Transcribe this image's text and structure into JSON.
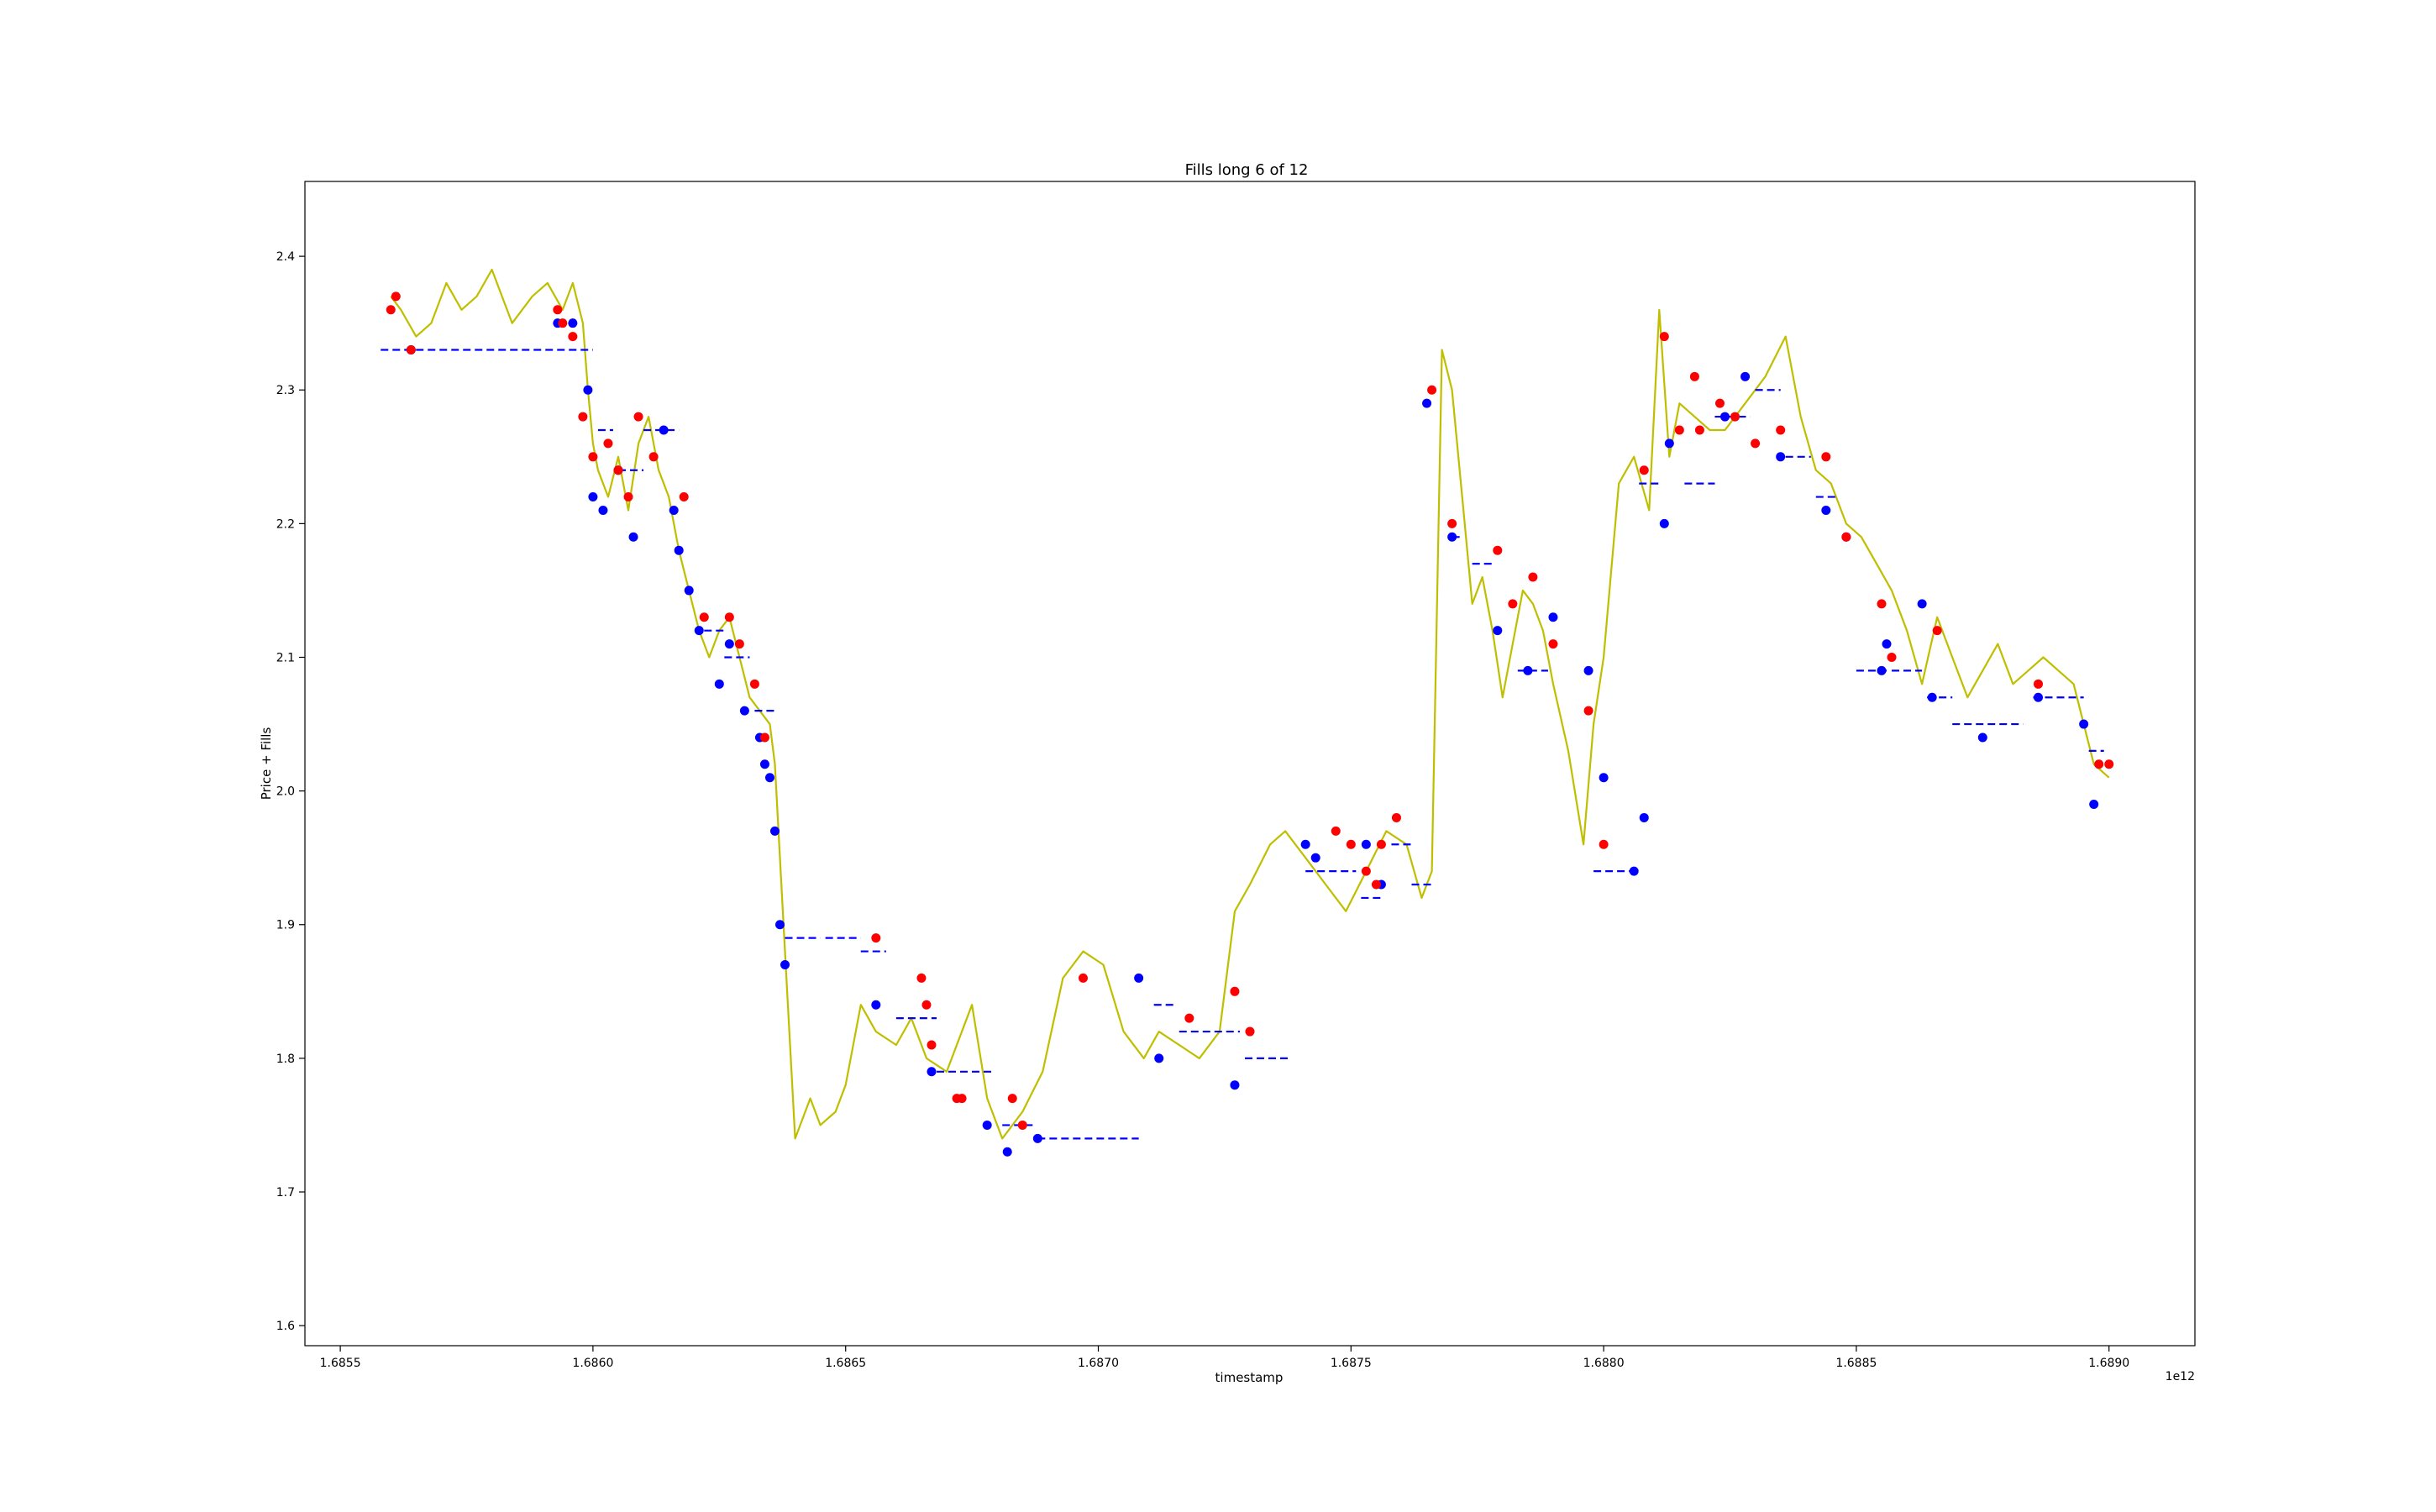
{
  "chart_data": {
    "type": "line",
    "title": "Fills long 6 of 12",
    "xlabel": "timestamp",
    "ylabel": "Price + Fills",
    "x_offset_label": "1e12",
    "xlim": [
      1.68543,
      1.68917
    ],
    "ylim": [
      1.585,
      2.456
    ],
    "xticks": [
      1.6855,
      1.686,
      1.6865,
      1.687,
      1.6875,
      1.688,
      1.6885,
      1.689
    ],
    "xtick_labels": [
      "1.6855",
      "1.6860",
      "1.6865",
      "1.6870",
      "1.6875",
      "1.6880",
      "1.6885",
      "1.6890"
    ],
    "yticks": [
      1.6,
      1.7,
      1.8,
      1.9,
      2.0,
      2.1,
      2.2,
      2.3,
      2.4
    ],
    "ytick_labels": [
      "1.6",
      "1.7",
      "1.8",
      "1.9",
      "2.0",
      "2.1",
      "2.2",
      "2.3",
      "2.4"
    ],
    "grid": false,
    "colors": {
      "price": "#bfbf00",
      "buy_fill": "#0000ff",
      "sell_fill": "#ff0000",
      "position_price": "#0000ff"
    },
    "series": [
      {
        "role": "price",
        "style": "line",
        "x": [
          1.6856,
          1.68562,
          1.68565,
          1.68568,
          1.68571,
          1.68574,
          1.68577,
          1.6858,
          1.68584,
          1.68588,
          1.68591,
          1.68594,
          1.68596,
          1.68598,
          1.68599,
          1.686,
          1.68601,
          1.68603,
          1.68605,
          1.68607,
          1.68609,
          1.68611,
          1.68613,
          1.68615,
          1.68617,
          1.68619,
          1.68621,
          1.68623,
          1.68625,
          1.68627,
          1.68629,
          1.68631,
          1.68633,
          1.68635,
          1.68636,
          1.68637,
          1.68638,
          1.6864,
          1.68643,
          1.68645,
          1.68648,
          1.6865,
          1.68653,
          1.68656,
          1.6866,
          1.68663,
          1.68666,
          1.6867,
          1.68675,
          1.68678,
          1.68681,
          1.68685,
          1.68689,
          1.68693,
          1.68697,
          1.68701,
          1.68705,
          1.68709,
          1.68712,
          1.68716,
          1.6872,
          1.68724,
          1.68727,
          1.6873,
          1.68734,
          1.68737,
          1.68741,
          1.68745,
          1.68749,
          1.68753,
          1.68757,
          1.68761,
          1.68764,
          1.68766,
          1.68768,
          1.6877,
          1.68772,
          1.68774,
          1.68776,
          1.68778,
          1.6878,
          1.68782,
          1.68784,
          1.68786,
          1.68788,
          1.6879,
          1.68793,
          1.68796,
          1.68798,
          1.688,
          1.68803,
          1.68806,
          1.68809,
          1.68811,
          1.68813,
          1.68815,
          1.68818,
          1.68821,
          1.68824,
          1.68828,
          1.68832,
          1.68836,
          1.68839,
          1.68842,
          1.68845,
          1.68848,
          1.68851,
          1.68854,
          1.68857,
          1.6886,
          1.68863,
          1.68866,
          1.68869,
          1.68872,
          1.68875,
          1.68878,
          1.68881,
          1.68884,
          1.68887,
          1.6889,
          1.68893,
          1.68897,
          1.689
        ],
        "y": [
          2.37,
          2.36,
          2.34,
          2.35,
          2.38,
          2.36,
          2.37,
          2.39,
          2.35,
          2.37,
          2.38,
          2.36,
          2.38,
          2.35,
          2.3,
          2.26,
          2.24,
          2.22,
          2.25,
          2.21,
          2.26,
          2.28,
          2.24,
          2.22,
          2.18,
          2.15,
          2.12,
          2.1,
          2.12,
          2.13,
          2.1,
          2.07,
          2.06,
          2.05,
          2.02,
          1.95,
          1.88,
          1.74,
          1.77,
          1.75,
          1.76,
          1.78,
          1.84,
          1.82,
          1.81,
          1.83,
          1.8,
          1.79,
          1.84,
          1.77,
          1.74,
          1.76,
          1.79,
          1.86,
          1.88,
          1.87,
          1.82,
          1.8,
          1.82,
          1.81,
          1.8,
          1.82,
          1.91,
          1.93,
          1.96,
          1.97,
          1.95,
          1.93,
          1.91,
          1.94,
          1.97,
          1.96,
          1.92,
          1.94,
          2.33,
          2.3,
          2.22,
          2.14,
          2.16,
          2.12,
          2.07,
          2.11,
          2.15,
          2.14,
          2.12,
          2.08,
          2.03,
          1.96,
          2.05,
          2.1,
          2.23,
          2.25,
          2.21,
          2.36,
          2.25,
          2.29,
          2.28,
          2.27,
          2.27,
          2.29,
          2.31,
          2.34,
          2.28,
          2.24,
          2.23,
          2.2,
          2.19,
          2.17,
          2.15,
          2.12,
          2.08,
          2.13,
          2.1,
          2.07,
          2.09,
          2.11,
          2.08,
          2.09,
          2.1,
          2.09,
          2.08,
          2.02,
          2.01
        ]
      },
      {
        "role": "buy_fills",
        "style": "markers",
        "x": [
          1.68564,
          1.68593,
          1.68596,
          1.68599,
          1.686,
          1.68602,
          1.68605,
          1.68608,
          1.68614,
          1.68616,
          1.68617,
          1.68619,
          1.68621,
          1.68625,
          1.68627,
          1.6863,
          1.68633,
          1.68634,
          1.68635,
          1.68636,
          1.68637,
          1.68638,
          1.68656,
          1.68667,
          1.68678,
          1.68682,
          1.68688,
          1.68708,
          1.68712,
          1.68727,
          1.68741,
          1.68743,
          1.68753,
          1.68756,
          1.68765,
          1.6877,
          1.68779,
          1.68785,
          1.6879,
          1.68797,
          1.688,
          1.68806,
          1.68808,
          1.68812,
          1.68813,
          1.68824,
          1.68828,
          1.68835,
          1.68844,
          1.68848,
          1.68855,
          1.68856,
          1.68863,
          1.68865,
          1.68875,
          1.68886,
          1.68895,
          1.68897
        ],
        "y": [
          2.33,
          2.35,
          2.35,
          2.3,
          2.22,
          2.21,
          2.24,
          2.19,
          2.27,
          2.21,
          2.18,
          2.15,
          2.12,
          2.08,
          2.11,
          2.06,
          2.04,
          2.02,
          2.01,
          1.97,
          1.9,
          1.87,
          1.84,
          1.79,
          1.75,
          1.73,
          1.74,
          1.86,
          1.8,
          1.78,
          1.96,
          1.95,
          1.96,
          1.93,
          2.29,
          2.19,
          2.12,
          2.09,
          2.13,
          2.09,
          2.01,
          1.94,
          1.98,
          2.2,
          2.26,
          2.28,
          2.31,
          2.25,
          2.21,
          2.19,
          2.09,
          2.11,
          2.14,
          2.07,
          2.04,
          2.07,
          2.05,
          1.99
        ]
      },
      {
        "role": "sell_fills",
        "style": "markers",
        "x": [
          1.6856,
          1.68561,
          1.68564,
          1.68593,
          1.68594,
          1.68596,
          1.68598,
          1.686,
          1.68603,
          1.68605,
          1.68607,
          1.68609,
          1.68612,
          1.68618,
          1.68622,
          1.68627,
          1.68629,
          1.68632,
          1.68634,
          1.68656,
          1.68665,
          1.68666,
          1.68667,
          1.68672,
          1.68673,
          1.68683,
          1.68685,
          1.68697,
          1.68718,
          1.68727,
          1.6873,
          1.68747,
          1.6875,
          1.68753,
          1.68755,
          1.68756,
          1.68759,
          1.68766,
          1.6877,
          1.68779,
          1.68782,
          1.68786,
          1.6879,
          1.68797,
          1.688,
          1.68808,
          1.68812,
          1.68815,
          1.68818,
          1.68819,
          1.68823,
          1.68826,
          1.6883,
          1.68835,
          1.68844,
          1.68848,
          1.68855,
          1.68857,
          1.68866,
          1.68886,
          1.68898,
          1.689
        ],
        "y": [
          2.36,
          2.37,
          2.33,
          2.36,
          2.35,
          2.34,
          2.28,
          2.25,
          2.26,
          2.24,
          2.22,
          2.28,
          2.25,
          2.22,
          2.13,
          2.13,
          2.11,
          2.08,
          2.04,
          1.89,
          1.86,
          1.84,
          1.81,
          1.77,
          1.77,
          1.77,
          1.75,
          1.86,
          1.83,
          1.85,
          1.82,
          1.97,
          1.96,
          1.94,
          1.93,
          1.96,
          1.98,
          2.3,
          2.2,
          2.18,
          2.14,
          2.16,
          2.11,
          2.06,
          1.96,
          2.24,
          2.34,
          2.27,
          2.31,
          2.27,
          2.29,
          2.28,
          2.26,
          2.27,
          2.25,
          2.19,
          2.14,
          2.1,
          2.12,
          2.08,
          2.02,
          2.02
        ]
      },
      {
        "role": "position_price",
        "style": "dashed",
        "segments": [
          [
            1.68558,
            1.686,
            2.33
          ],
          [
            1.68601,
            1.68604,
            2.27
          ],
          [
            1.68605,
            1.6861,
            2.24
          ],
          [
            1.6861,
            1.68617,
            2.27
          ],
          [
            1.68622,
            1.68626,
            2.12
          ],
          [
            1.68626,
            1.68631,
            2.1
          ],
          [
            1.68632,
            1.68636,
            2.06
          ],
          [
            1.68638,
            1.68645,
            1.89
          ],
          [
            1.68646,
            1.68653,
            1.89
          ],
          [
            1.68653,
            1.68658,
            1.88
          ],
          [
            1.6866,
            1.68668,
            1.83
          ],
          [
            1.68668,
            1.68679,
            1.79
          ],
          [
            1.68681,
            1.68687,
            1.75
          ],
          [
            1.68688,
            1.68708,
            1.74
          ],
          [
            1.68711,
            1.68715,
            1.84
          ],
          [
            1.68716,
            1.68728,
            1.82
          ],
          [
            1.68729,
            1.68738,
            1.8
          ],
          [
            1.68741,
            1.68751,
            1.94
          ],
          [
            1.68752,
            1.68756,
            1.92
          ],
          [
            1.68758,
            1.68762,
            1.96
          ],
          [
            1.68762,
            1.68766,
            1.93
          ],
          [
            1.6877,
            1.68772,
            2.19
          ],
          [
            1.68774,
            1.68778,
            2.17
          ],
          [
            1.68783,
            1.68789,
            2.09
          ],
          [
            1.68798,
            1.68806,
            1.94
          ],
          [
            1.68807,
            1.68811,
            2.23
          ],
          [
            1.68816,
            1.68822,
            2.23
          ],
          [
            1.68822,
            1.68829,
            2.28
          ],
          [
            1.6883,
            1.68835,
            2.3
          ],
          [
            1.68836,
            1.68841,
            2.25
          ],
          [
            1.68842,
            1.68846,
            2.22
          ],
          [
            1.6885,
            1.68856,
            2.09
          ],
          [
            1.68857,
            1.68863,
            2.09
          ],
          [
            1.68864,
            1.68869,
            2.07
          ],
          [
            1.68869,
            1.68883,
            2.05
          ],
          [
            1.68885,
            1.68895,
            2.07
          ],
          [
            1.68896,
            1.68899,
            2.03
          ]
        ]
      }
    ]
  }
}
